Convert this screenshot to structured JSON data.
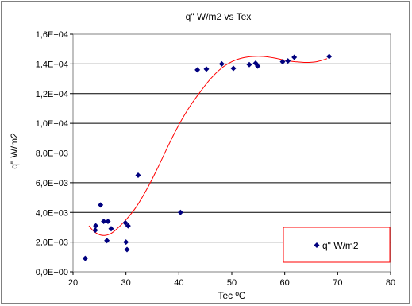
{
  "chart_data": {
    "type": "scatter",
    "title": "q\" W/m2 vs Tex",
    "xlabel": "Tec ºC",
    "ylabel": "q\" W/m2",
    "xlim": [
      20,
      80
    ],
    "ylim": [
      0,
      16000
    ],
    "x_ticks": [
      20,
      30,
      40,
      50,
      60,
      70,
      80
    ],
    "x_tick_labels": [
      "20",
      "30",
      "40",
      "50",
      "60",
      "70",
      "80"
    ],
    "y_ticks": [
      0,
      2000,
      4000,
      6000,
      8000,
      10000,
      12000,
      14000,
      16000
    ],
    "y_tick_labels": [
      "0,0E+00",
      "2,0E+03",
      "4,0E+03",
      "6,0E+03",
      "8,0E+03",
      "1,0E+04",
      "1,2E+04",
      "1,4E+04",
      "1,6E+04"
    ],
    "grid": "horizontal",
    "legend_position": "bottom-right",
    "series": [
      {
        "name": "q\" W/m2",
        "color": "#00007f",
        "marker": "diamond",
        "points": [
          [
            22.3,
            900
          ],
          [
            24.2,
            2800
          ],
          [
            24.3,
            3100
          ],
          [
            25.2,
            4500
          ],
          [
            25.8,
            3400
          ],
          [
            26.4,
            2100
          ],
          [
            26.6,
            3400
          ],
          [
            27.2,
            2900
          ],
          [
            29.9,
            3300
          ],
          [
            30.0,
            2000
          ],
          [
            30.2,
            1500
          ],
          [
            30.4,
            3100
          ],
          [
            32.3,
            6500
          ],
          [
            40.3,
            4000
          ],
          [
            43.5,
            13600
          ],
          [
            45.2,
            13650
          ],
          [
            48.1,
            14000
          ],
          [
            50.3,
            13700
          ],
          [
            53.3,
            13950
          ],
          [
            54.5,
            14050
          ],
          [
            54.9,
            13850
          ],
          [
            59.6,
            14150
          ],
          [
            60.6,
            14200
          ],
          [
            61.8,
            14450
          ],
          [
            68.4,
            14500
          ]
        ]
      }
    ],
    "trendline": {
      "color": "#ff0000",
      "points": [
        [
          23,
          3100
        ],
        [
          24,
          2700
        ],
        [
          25,
          2500
        ],
        [
          26,
          2450
        ],
        [
          27,
          2550
        ],
        [
          28,
          2800
        ],
        [
          30,
          3500
        ],
        [
          32,
          4400
        ],
        [
          34,
          5600
        ],
        [
          36,
          7000
        ],
        [
          38,
          8500
        ],
        [
          40,
          9900
        ],
        [
          42,
          11100
        ],
        [
          44,
          12100
        ],
        [
          46,
          13000
        ],
        [
          48,
          13700
        ],
        [
          50,
          14150
        ],
        [
          52,
          14400
        ],
        [
          54,
          14500
        ],
        [
          56,
          14500
        ],
        [
          58,
          14400
        ],
        [
          60,
          14250
        ],
        [
          62,
          14150
        ],
        [
          64,
          14100
        ],
        [
          66,
          14150
        ],
        [
          68,
          14350
        ]
      ]
    }
  }
}
